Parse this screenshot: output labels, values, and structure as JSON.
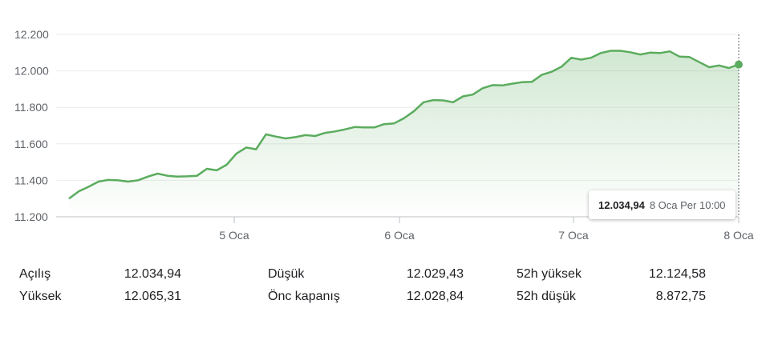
{
  "chart_data": {
    "type": "area",
    "ylim": [
      11200,
      12200
    ],
    "yticks": [
      {
        "value": 12200,
        "label": "12.200"
      },
      {
        "value": 12000,
        "label": "12.000"
      },
      {
        "value": 11800,
        "label": "11.800"
      },
      {
        "value": 11600,
        "label": "11.600"
      },
      {
        "value": 11400,
        "label": "11.400"
      },
      {
        "value": 11200,
        "label": "11.200"
      }
    ],
    "xticks": [
      {
        "index": 19,
        "label": "5 Oca"
      },
      {
        "index": 38,
        "label": "6 Oca"
      },
      {
        "index": 58,
        "label": "7 Oca"
      },
      {
        "index": 77,
        "label": "8 Oca"
      }
    ],
    "values": [
      11300,
      11340,
      11365,
      11393,
      11402,
      11400,
      11393,
      11400,
      11420,
      11437,
      11425,
      11420,
      11422,
      11425,
      11463,
      11455,
      11485,
      11547,
      11580,
      11570,
      11652,
      11640,
      11630,
      11637,
      11648,
      11643,
      11660,
      11668,
      11679,
      11692,
      11690,
      11690,
      11708,
      11712,
      11740,
      11778,
      11828,
      11840,
      11838,
      11828,
      11860,
      11870,
      11905,
      11922,
      11920,
      11930,
      11938,
      11940,
      11978,
      11995,
      12023,
      12072,
      12062,
      12072,
      12098,
      12110,
      12110,
      12102,
      12090,
      12100,
      12098,
      12107,
      12078,
      12076,
      12048,
      12020,
      12030,
      12016,
      12035
    ],
    "grid": true,
    "line_color": "#5bac5e",
    "fill_color": "#5bac5e"
  },
  "tooltip": {
    "value": "12.034,94",
    "time": "8 Oca Per 10:00"
  },
  "stats": [
    {
      "label": "Açılış",
      "value": "12.034,94"
    },
    {
      "label": "Yüksek",
      "value": "12.065,31"
    },
    {
      "label": "Düşük",
      "value": "12.029,43"
    },
    {
      "label": "Önc kapanış",
      "value": "12.028,84"
    },
    {
      "label": "52h yüksek",
      "value": "12.124,58"
    },
    {
      "label": "52h düşük",
      "value": "8.872,75"
    }
  ]
}
